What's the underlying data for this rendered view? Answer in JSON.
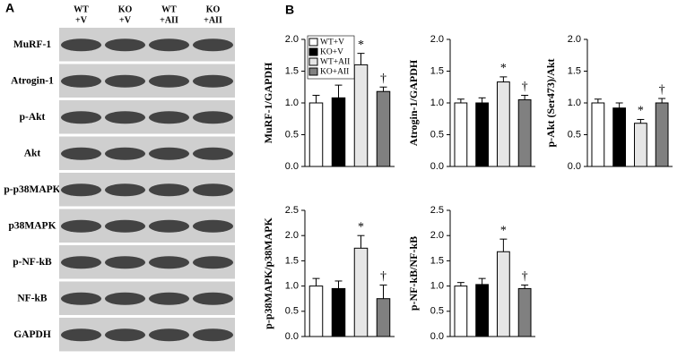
{
  "panels": [
    "A",
    "B"
  ],
  "blot": {
    "lanes": [
      [
        "WT",
        "+V"
      ],
      [
        "KO",
        "+V"
      ],
      [
        "WT",
        "+AII"
      ],
      [
        "KO",
        "+AII"
      ]
    ],
    "rows": [
      "MuRF-1",
      "Atrogin-1",
      "p-Akt",
      "Akt",
      "p-p38MAPK",
      "p38MAPK",
      "p-NF-kB",
      "NF-kB",
      "GAPDH"
    ]
  },
  "chart_data": [
    {
      "type": "bar",
      "ylabel": "MuRF-1/GAPDH",
      "values": [
        1.0,
        1.08,
        1.6,
        1.18
      ],
      "errors": [
        0.12,
        0.2,
        0.18,
        0.07
      ],
      "markers": [
        null,
        null,
        "*",
        "†"
      ],
      "colors": [
        "#ffffff",
        "#000000",
        "#e6e6e6",
        "#808080"
      ],
      "ylim": [
        0,
        2.0
      ],
      "yticks": [
        {
          "value": 0,
          "label": "0.0"
        },
        {
          "value": 0.5,
          "label": "0.5"
        },
        {
          "value": 1.0,
          "label": "1.0"
        },
        {
          "value": 1.5,
          "label": "1.5"
        },
        {
          "value": 2.0,
          "label": "2.0"
        }
      ],
      "legend": [
        "WT+V",
        "KO+V",
        "WT+AII",
        "KO+AII"
      ]
    },
    {
      "type": "bar",
      "ylabel": "Atrogin-1/GAPDH",
      "values": [
        1.0,
        1.0,
        1.33,
        1.05
      ],
      "errors": [
        0.06,
        0.08,
        0.08,
        0.07
      ],
      "markers": [
        null,
        null,
        "*",
        "†"
      ],
      "colors": [
        "#ffffff",
        "#000000",
        "#e6e6e6",
        "#808080"
      ],
      "ylim": [
        0,
        2.0
      ],
      "yticks": [
        {
          "value": 0,
          "label": "0.0"
        },
        {
          "value": 0.5,
          "label": "0.5"
        },
        {
          "value": 1.0,
          "label": "1.0"
        },
        {
          "value": 1.5,
          "label": "1.5"
        },
        {
          "value": 2.0,
          "label": "2.0"
        }
      ]
    },
    {
      "type": "bar",
      "ylabel": "p-Akt (Ser473)/Akt",
      "values": [
        1.0,
        0.92,
        0.68,
        1.0
      ],
      "errors": [
        0.06,
        0.08,
        0.06,
        0.07
      ],
      "markers": [
        null,
        null,
        "*",
        "†"
      ],
      "colors": [
        "#ffffff",
        "#000000",
        "#e6e6e6",
        "#808080"
      ],
      "ylim": [
        0,
        2.0
      ],
      "yticks": [
        {
          "value": 0,
          "label": "0.0"
        },
        {
          "value": 0.5,
          "label": "0.5"
        },
        {
          "value": 1.0,
          "label": "1.0"
        },
        {
          "value": 1.5,
          "label": "1.5"
        },
        {
          "value": 2.0,
          "label": "2.0"
        }
      ]
    },
    {
      "type": "bar",
      "ylabel": "p-p38MAPK/p38MAPK",
      "values": [
        1.0,
        0.95,
        1.75,
        0.75
      ],
      "errors": [
        0.15,
        0.15,
        0.25,
        0.27
      ],
      "markers": [
        null,
        null,
        "*",
        "†"
      ],
      "colors": [
        "#ffffff",
        "#000000",
        "#e6e6e6",
        "#808080"
      ],
      "ylim": [
        0,
        2.5
      ],
      "yticks": [
        {
          "value": 0,
          "label": "0.0"
        },
        {
          "value": 0.5,
          "label": "0.5"
        },
        {
          "value": 1.0,
          "label": "1.0"
        },
        {
          "value": 1.5,
          "label": "1.5"
        },
        {
          "value": 2.0,
          "label": "2.0"
        },
        {
          "value": 2.5,
          "label": "2.5"
        }
      ]
    },
    {
      "type": "bar",
      "ylabel": "p-NF-kB/NF-kB",
      "values": [
        1.0,
        1.03,
        1.68,
        0.95
      ],
      "errors": [
        0.07,
        0.12,
        0.25,
        0.07
      ],
      "markers": [
        null,
        null,
        "*",
        "†"
      ],
      "colors": [
        "#ffffff",
        "#000000",
        "#e6e6e6",
        "#808080"
      ],
      "ylim": [
        0,
        2.5
      ],
      "yticks": [
        {
          "value": 0,
          "label": "0.0"
        },
        {
          "value": 0.5,
          "label": "0.5"
        },
        {
          "value": 1.0,
          "label": "1.0"
        },
        {
          "value": 1.5,
          "label": "1.5"
        },
        {
          "value": 2.0,
          "label": "2.0"
        },
        {
          "value": 2.5,
          "label": "2.5"
        }
      ]
    }
  ]
}
